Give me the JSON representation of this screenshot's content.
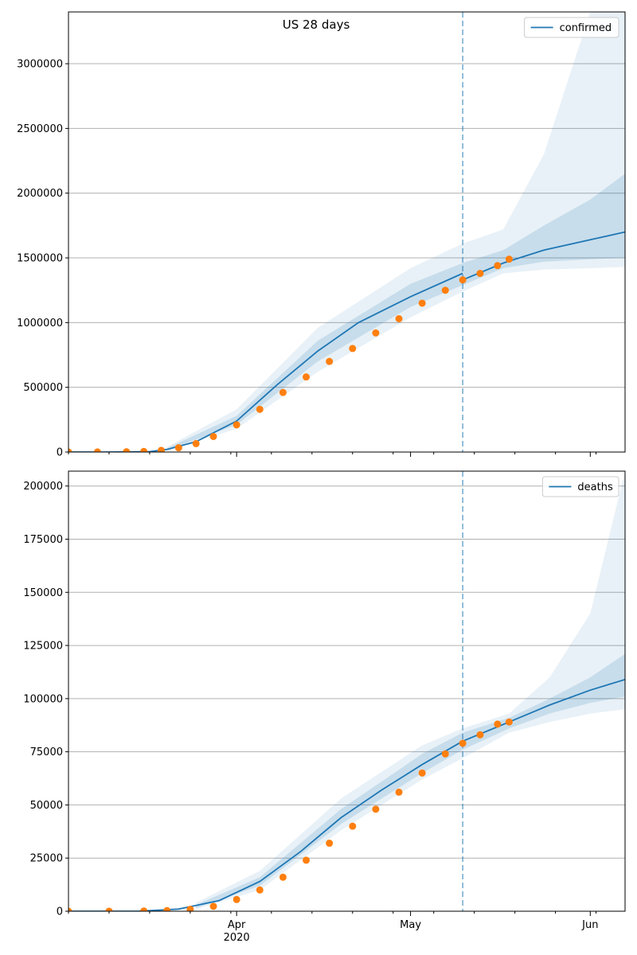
{
  "figure_title": "US 28 days",
  "colors": {
    "model": "#1f77b4",
    "observed": "#ff7f0e",
    "band": "#1f77b4",
    "grid": "#b0b0b0",
    "divider": "#1f77b4"
  },
  "chart_data": [
    {
      "type": "line",
      "name": "confirmed",
      "legend_label": "confirmed",
      "legend_position": "top-right",
      "grid": "horizontal",
      "ylim": [
        0,
        3400000
      ],
      "y_ticks": [
        0,
        500000,
        1000000,
        1500000,
        2000000,
        2500000,
        3000000
      ],
      "y_tick_labels": [
        "0",
        "500000",
        "1000000",
        "1500000",
        "2000000",
        "2500000",
        "3000000"
      ],
      "x_range": [
        "2020-03-03",
        "2020-06-07"
      ],
      "forecast_start": "2020-05-10",
      "model": {
        "x": [
          "2020-03-03",
          "2020-03-10",
          "2020-03-17",
          "2020-03-20",
          "2020-03-25",
          "2020-04-01",
          "2020-04-08",
          "2020-04-15",
          "2020-04-22",
          "2020-05-01",
          "2020-05-10"
        ],
        "y": [
          0,
          0,
          3000,
          20000,
          80000,
          240000,
          520000,
          780000,
          1000000,
          1200000,
          1380000
        ]
      },
      "forecast": {
        "x": [
          "2020-05-10",
          "2020-05-17",
          "2020-05-24",
          "2020-06-01",
          "2020-06-07"
        ],
        "y": [
          1330000,
          1460000,
          1560000,
          1640000,
          1700000
        ]
      },
      "band_inner": {
        "x": [
          "2020-03-20",
          "2020-04-01",
          "2020-04-15",
          "2020-05-01",
          "2020-05-10",
          "2020-05-17",
          "2020-05-24",
          "2020-06-01",
          "2020-06-07"
        ],
        "lower": [
          15000,
          210000,
          700000,
          1120000,
          1290000,
          1420000,
          1470000,
          1490000,
          1500000
        ],
        "upper": [
          30000,
          280000,
          860000,
          1300000,
          1460000,
          1560000,
          1750000,
          1950000,
          2150000
        ]
      },
      "band_outer": {
        "x": [
          "2020-03-20",
          "2020-04-01",
          "2020-04-15",
          "2020-05-01",
          "2020-05-10",
          "2020-05-17",
          "2020-05-24",
          "2020-06-01",
          "2020-06-07"
        ],
        "lower": [
          10000,
          180000,
          620000,
          1040000,
          1240000,
          1380000,
          1410000,
          1420000,
          1430000
        ],
        "upper": [
          40000,
          330000,
          960000,
          1420000,
          1610000,
          1720000,
          2300000,
          3400000,
          3400000
        ]
      },
      "observed": {
        "x": [
          "2020-03-03",
          "2020-03-08",
          "2020-03-13",
          "2020-03-16",
          "2020-03-19",
          "2020-03-22",
          "2020-03-25",
          "2020-03-28",
          "2020-04-01",
          "2020-04-05",
          "2020-04-09",
          "2020-04-13",
          "2020-04-17",
          "2020-04-21",
          "2020-04-25",
          "2020-04-29",
          "2020-05-03",
          "2020-05-07",
          "2020-05-10",
          "2020-05-13",
          "2020-05-16",
          "2020-05-18"
        ],
        "y": [
          100,
          500,
          2000,
          4600,
          13000,
          33000,
          65000,
          120000,
          210000,
          330000,
          460000,
          580000,
          700000,
          800000,
          920000,
          1030000,
          1150000,
          1250000,
          1330000,
          1380000,
          1440000,
          1490000
        ]
      }
    },
    {
      "type": "line",
      "name": "deaths",
      "legend_label": "deaths",
      "legend_position": "top-right",
      "grid": "horizontal",
      "ylim": [
        0,
        207000
      ],
      "y_ticks": [
        0,
        25000,
        50000,
        75000,
        100000,
        125000,
        150000,
        175000,
        200000
      ],
      "y_tick_labels": [
        "0",
        "25000",
        "50000",
        "75000",
        "100000",
        "125000",
        "150000",
        "175000",
        "200000"
      ],
      "x_range": [
        "2020-03-03",
        "2020-06-07"
      ],
      "x_tick_labels": [
        {
          "date": "2020-04-01",
          "label": "Apr",
          "sublabel": "2020"
        },
        {
          "date": "2020-05-01",
          "label": "May",
          "sublabel": ""
        },
        {
          "date": "2020-06-01",
          "label": "Jun",
          "sublabel": ""
        }
      ],
      "forecast_start": "2020-05-10",
      "model": {
        "x": [
          "2020-03-03",
          "2020-03-15",
          "2020-03-22",
          "2020-03-29",
          "2020-04-05",
          "2020-04-12",
          "2020-04-19",
          "2020-04-26",
          "2020-05-03",
          "2020-05-10"
        ],
        "y": [
          0,
          0,
          1000,
          5000,
          14000,
          28000,
          44000,
          57000,
          69000,
          80000
        ]
      },
      "forecast": {
        "x": [
          "2020-05-10",
          "2020-05-18",
          "2020-05-25",
          "2020-06-01",
          "2020-06-07"
        ],
        "y": [
          80000,
          89000,
          97000,
          104000,
          109000
        ]
      },
      "band_inner": {
        "x": [
          "2020-03-25",
          "2020-04-05",
          "2020-04-19",
          "2020-05-03",
          "2020-05-10",
          "2020-05-18",
          "2020-05-25",
          "2020-06-01",
          "2020-06-07"
        ],
        "lower": [
          1500,
          12000,
          41000,
          65000,
          76000,
          86000,
          93000,
          98000,
          101000
        ],
        "upper": [
          3000,
          16000,
          48000,
          74000,
          84000,
          91000,
          100000,
          110000,
          121000
        ]
      },
      "band_outer": {
        "x": [
          "2020-03-25",
          "2020-04-05",
          "2020-04-19",
          "2020-05-03",
          "2020-05-10",
          "2020-05-18",
          "2020-05-25",
          "2020-06-01",
          "2020-06-07"
        ],
        "lower": [
          1000,
          10000,
          38000,
          62000,
          72000,
          84000,
          89000,
          93000,
          95000
        ],
        "upper": [
          4000,
          19000,
          53000,
          78000,
          86000,
          93000,
          110000,
          140000,
          207000
        ]
      },
      "observed": {
        "x": [
          "2020-03-03",
          "2020-03-10",
          "2020-03-16",
          "2020-03-20",
          "2020-03-24",
          "2020-03-28",
          "2020-04-01",
          "2020-04-05",
          "2020-04-09",
          "2020-04-13",
          "2020-04-17",
          "2020-04-21",
          "2020-04-25",
          "2020-04-29",
          "2020-05-03",
          "2020-05-07",
          "2020-05-10",
          "2020-05-13",
          "2020-05-16",
          "2020-05-18"
        ],
        "y": [
          0,
          10,
          100,
          300,
          900,
          2300,
          5500,
          10000,
          16000,
          24000,
          32000,
          40000,
          48000,
          56000,
          65000,
          74000,
          79000,
          83000,
          88000,
          89000
        ]
      }
    }
  ]
}
